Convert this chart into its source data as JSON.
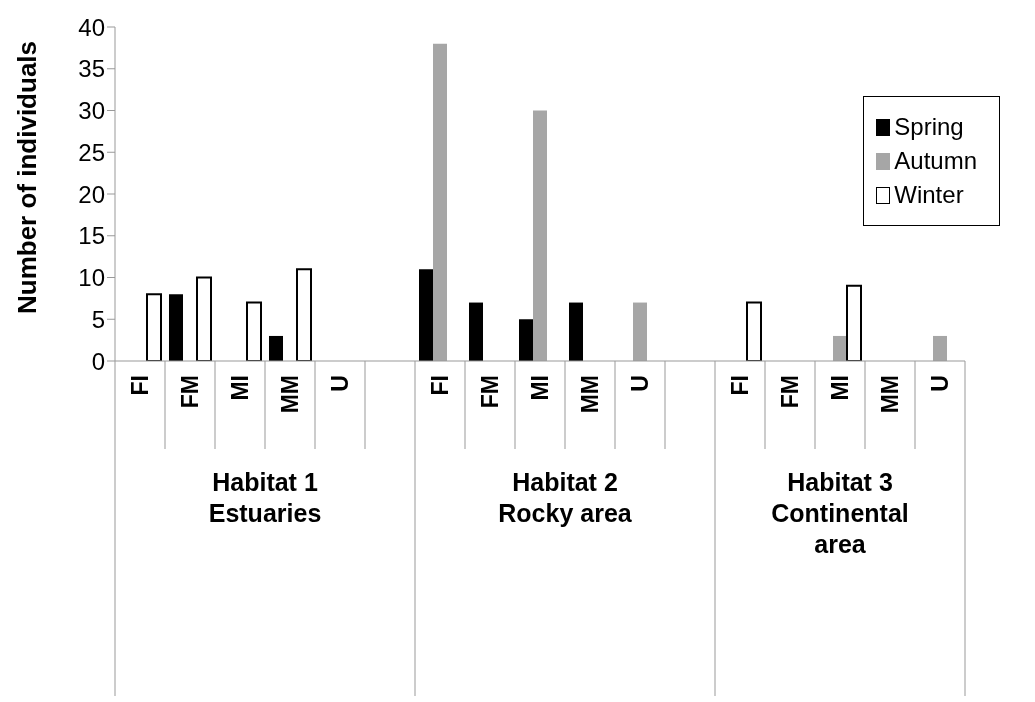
{
  "chart_data": {
    "type": "bar",
    "ylabel": "Number of individuals",
    "categories": [
      "FI",
      "FM",
      "MI",
      "MM",
      "U",
      null,
      "FI",
      "FM",
      "MI",
      "MM",
      "U",
      null,
      "FI",
      "FM",
      "MI",
      "MM",
      "U"
    ],
    "series": [
      {
        "name": "Spring",
        "color": "#000000",
        "values": [
          0,
          8,
          0,
          3,
          0,
          null,
          11,
          7,
          5,
          7,
          0,
          null,
          0,
          0,
          0,
          0,
          0
        ]
      },
      {
        "name": "Autumn",
        "color": "#a6a6a6",
        "values": [
          0,
          0,
          0,
          0,
          0,
          null,
          38,
          0,
          30,
          0,
          7,
          null,
          0,
          0,
          3,
          0,
          3
        ]
      },
      {
        "name": "Winter",
        "color": "#ffffff",
        "values": [
          8,
          10,
          7,
          11,
          0,
          null,
          0,
          0,
          0,
          0,
          0,
          null,
          7,
          0,
          9,
          0,
          0
        ]
      }
    ],
    "annotations": [
      "Habitat 1\nEstuaries",
      "Habitat 2\nRocky area",
      "Habitat 3\nContinental\narea"
    ],
    "ylim": [
      0,
      40
    ],
    "yticks": [
      0,
      5,
      10,
      15,
      20,
      25,
      30,
      35,
      40
    ],
    "grid": false,
    "legend": "top right"
  }
}
